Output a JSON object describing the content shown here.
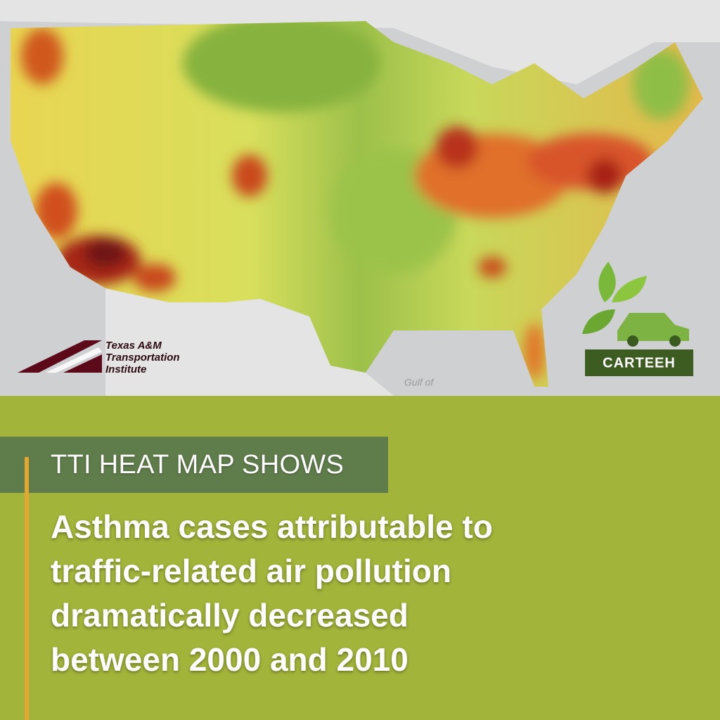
{
  "map": {
    "water_label": "Gulf of"
  },
  "logos": {
    "tti": [
      "Texas A&M",
      "Transportation",
      "Institute"
    ],
    "carteeh": "CARTEEH"
  },
  "banner": {
    "kicker": "TTI HEAT MAP SHOWS",
    "headline": [
      "Asthma cases attributable to",
      "traffic-related air pollution",
      "dramatically decreased",
      "between 2000 and 2010"
    ]
  }
}
